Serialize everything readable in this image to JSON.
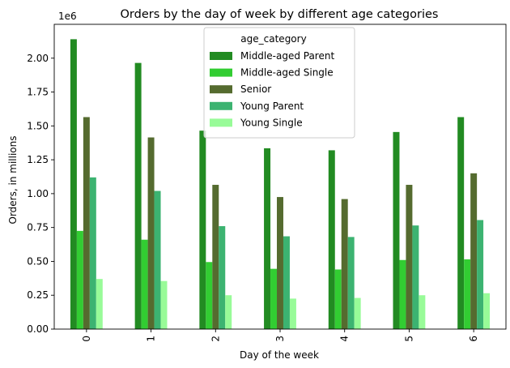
{
  "chart_data": {
    "type": "bar",
    "title": "Orders by the day of week by different age categories",
    "xlabel": "Day of the week",
    "ylabel": "Orders, in millions",
    "y_offset_label": "1e6",
    "categories": [
      "0",
      "1",
      "2",
      "3",
      "4",
      "5",
      "6"
    ],
    "ylim": [
      0,
      2250000
    ],
    "yticks": [
      "0.00",
      "0.25",
      "0.50",
      "0.75",
      "1.00",
      "1.25",
      "1.50",
      "1.75",
      "2.00"
    ],
    "legend_title": "age_category",
    "legend_position": "top-center",
    "grid": false,
    "series": [
      {
        "name": "Middle-aged Parent",
        "color": "#228B22",
        "values": [
          2140000,
          1965000,
          1465000,
          1335000,
          1320000,
          1455000,
          1565000
        ]
      },
      {
        "name": "Middle-aged Single",
        "color": "#32CD32",
        "values": [
          725000,
          660000,
          495000,
          445000,
          440000,
          510000,
          515000
        ]
      },
      {
        "name": "Senior",
        "color": "#556B2F",
        "values": [
          1565000,
          1415000,
          1065000,
          975000,
          960000,
          1065000,
          1150000
        ]
      },
      {
        "name": "Young Parent",
        "color": "#3CB371",
        "values": [
          1120000,
          1020000,
          760000,
          685000,
          680000,
          765000,
          805000
        ]
      },
      {
        "name": "Young Single",
        "color": "#98FB98",
        "values": [
          370000,
          355000,
          250000,
          225000,
          230000,
          250000,
          265000
        ]
      }
    ]
  }
}
